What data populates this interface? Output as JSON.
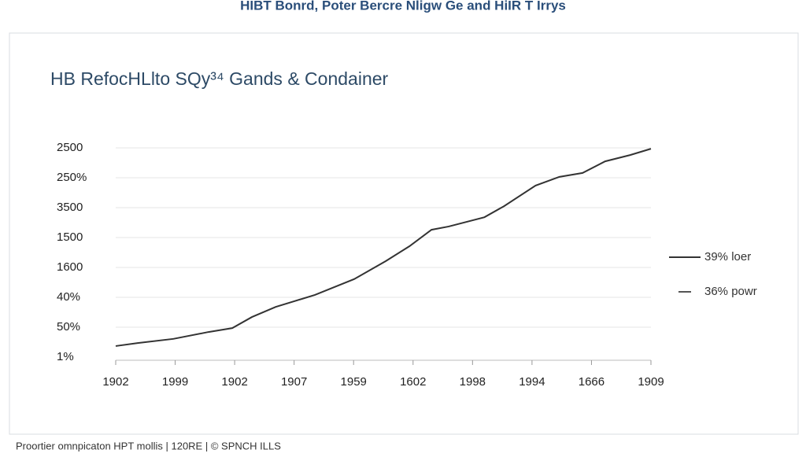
{
  "chart_data": {
    "type": "line",
    "header": "HIBT Bonrd, Poter Bercre Nligw Ge and HiIR T Irrys",
    "title": "HB RefocHLlto SQy³⁴ Gands & Condainer",
    "footer": "Proortier omnpicaton HPT mollis | 120RE | © SPNCH ILLS",
    "xlim": [
      0,
      9
    ],
    "xticks": [
      {
        "value": 0,
        "label": "1902"
      },
      {
        "value": 1,
        "label": "1999"
      },
      {
        "value": 2,
        "label": "1902"
      },
      {
        "value": 3,
        "label": "1907"
      },
      {
        "value": 4,
        "label": "1959"
      },
      {
        "value": 5,
        "label": "1602"
      },
      {
        "value": 6,
        "label": "1998"
      },
      {
        "value": 7,
        "label": "1994"
      },
      {
        "value": 8,
        "label": "1666"
      },
      {
        "value": 9,
        "label": "1909"
      }
    ],
    "ylim": [
      0,
      7
    ],
    "yticks": [
      {
        "value": 0,
        "label": "1%"
      },
      {
        "value": 1,
        "label": "50%"
      },
      {
        "value": 2,
        "label": "40%"
      },
      {
        "value": 3,
        "label": "1600"
      },
      {
        "value": 4,
        "label": "1500"
      },
      {
        "value": 5,
        "label": "3500"
      },
      {
        "value": 6,
        "label": "250%"
      },
      {
        "value": 7,
        "label": "2500"
      }
    ],
    "grid": true,
    "x": [
      0,
      0.37,
      0.97,
      1.56,
      1.96,
      2.29,
      2.69,
      3.35,
      4.01,
      4.54,
      4.94,
      5.31,
      5.6,
      6.2,
      6.53,
      7.06,
      7.46,
      7.85,
      8.23,
      8.65,
      9
    ],
    "values": [
      0.37,
      0.47,
      0.61,
      0.84,
      0.97,
      1.34,
      1.68,
      2.08,
      2.61,
      3.21,
      3.71,
      4.26,
      4.37,
      4.68,
      5.05,
      5.74,
      6.03,
      6.16,
      6.55,
      6.76,
      6.97
    ],
    "color": "#333333",
    "legend": [
      {
        "name": "39% loer",
        "color": "#333333"
      },
      {
        "name": "36% powr",
        "color": "#555555"
      }
    ]
  }
}
